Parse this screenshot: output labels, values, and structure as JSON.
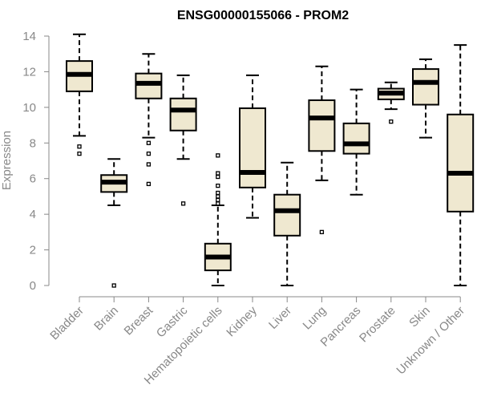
{
  "chart_data": {
    "type": "boxplot",
    "title": "ENSG00000155066 - PROM2",
    "xlabel": "",
    "ylabel": "Expression",
    "ylim": [
      0,
      14
    ],
    "yticks": [
      0,
      2,
      4,
      6,
      8,
      10,
      12,
      14
    ],
    "categories": [
      "Bladder",
      "Brain",
      "Breast",
      "Gastric",
      "Hematopoietic cells",
      "Kidney",
      "Liver",
      "Lung",
      "Pancreas",
      "Prostate",
      "Skin",
      "Unknown / Other"
    ],
    "boxes": [
      {
        "category": "Bladder",
        "whisker_low": 8.4,
        "q1": 10.9,
        "median": 11.85,
        "q3": 12.6,
        "whisker_high": 14.1,
        "outliers": [
          7.8,
          7.4
        ]
      },
      {
        "category": "Brain",
        "whisker_low": 4.5,
        "q1": 5.25,
        "median": 5.8,
        "q3": 6.2,
        "whisker_high": 7.1,
        "outliers": [
          0.0
        ]
      },
      {
        "category": "Breast",
        "whisker_low": 8.3,
        "q1": 10.5,
        "median": 11.35,
        "q3": 11.9,
        "whisker_high": 13.0,
        "outliers": [
          8.0,
          7.4,
          6.8,
          5.7
        ]
      },
      {
        "category": "Gastric",
        "whisker_low": 7.1,
        "q1": 8.7,
        "median": 9.85,
        "q3": 10.5,
        "whisker_high": 11.8,
        "outliers": [
          4.6
        ]
      },
      {
        "category": "Hematopoietic cells",
        "whisker_low": 0.0,
        "q1": 0.85,
        "median": 1.6,
        "q3": 2.35,
        "whisker_high": 4.5,
        "outliers": [
          4.6,
          4.8,
          5.0,
          5.2,
          5.6,
          6.1,
          6.3,
          7.3
        ]
      },
      {
        "category": "Kidney",
        "whisker_low": 3.8,
        "q1": 5.5,
        "median": 6.35,
        "q3": 9.95,
        "whisker_high": 11.8,
        "outliers": []
      },
      {
        "category": "Liver",
        "whisker_low": 0.0,
        "q1": 2.8,
        "median": 4.2,
        "q3": 5.1,
        "whisker_high": 6.9,
        "outliers": []
      },
      {
        "category": "Lung",
        "whisker_low": 5.9,
        "q1": 7.55,
        "median": 9.4,
        "q3": 10.4,
        "whisker_high": 12.3,
        "outliers": [
          3.0
        ]
      },
      {
        "category": "Pancreas",
        "whisker_low": 5.1,
        "q1": 7.4,
        "median": 7.95,
        "q3": 9.1,
        "whisker_high": 11.0,
        "outliers": []
      },
      {
        "category": "Prostate",
        "whisker_low": 9.9,
        "q1": 10.45,
        "median": 10.8,
        "q3": 11.05,
        "whisker_high": 11.4,
        "outliers": [
          9.2
        ]
      },
      {
        "category": "Skin",
        "whisker_low": 8.3,
        "q1": 10.15,
        "median": 11.4,
        "q3": 12.15,
        "whisker_high": 12.7,
        "outliers": []
      },
      {
        "category": "Unknown / Other",
        "whisker_low": 0.0,
        "q1": 4.15,
        "median": 6.3,
        "q3": 9.6,
        "whisker_high": 13.5,
        "outliers": []
      }
    ],
    "box_fill": "#EFE8D0",
    "box_stroke": "#000000",
    "grid": false,
    "legend": "none"
  }
}
